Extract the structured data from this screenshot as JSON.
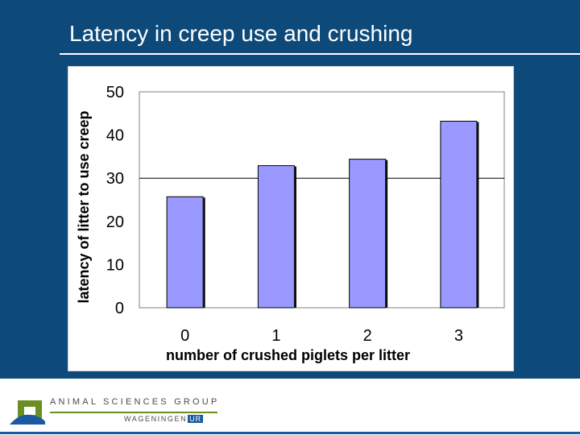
{
  "slide": {
    "title": "Latency in creep use and crushing"
  },
  "footer": {
    "organization": "ANIMAL SCIENCES GROUP",
    "sub_name": "WAGENINGEN",
    "sub_badge": "UR"
  },
  "colors": {
    "background": "#0d4a7a",
    "bar_fill": "#9999ff",
    "bar_stroke": "#000000",
    "plot_border": "#808080",
    "logo_green": "#6b8e23",
    "logo_blue": "#1a5aa0"
  },
  "icons": {
    "logo": "animal-sciences-group-logo-icon"
  },
  "chart_data": {
    "type": "bar",
    "categories": [
      "0",
      "1",
      "2",
      "3"
    ],
    "values": [
      25.7,
      32.9,
      34.4,
      43.2
    ],
    "title": "",
    "xlabel": "number of crushed piglets per litter",
    "ylabel": "latency of litter to use creep",
    "ylim": [
      0,
      50
    ],
    "yticks": [
      0,
      10,
      20,
      30,
      40,
      50
    ],
    "grid": "horizontal line at 30",
    "legend": "none"
  }
}
